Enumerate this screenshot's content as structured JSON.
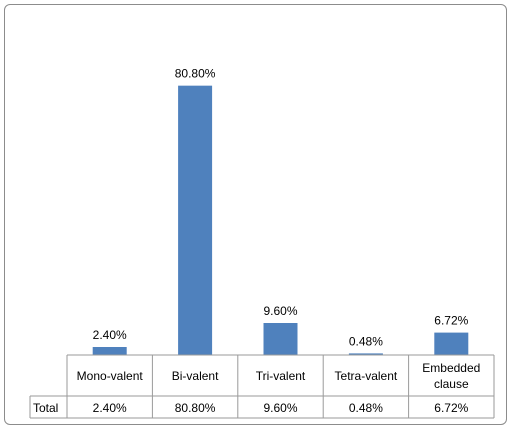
{
  "chart_data": {
    "type": "bar",
    "title": "",
    "xlabel": "",
    "ylabel": "",
    "categories": [
      "Mono-valent",
      "Bi-valent",
      "Tri-valent",
      "Tetra-valent",
      "Embedded clause"
    ],
    "series": [
      {
        "name": "Total",
        "values": [
          2.4,
          80.8,
          9.6,
          0.48,
          6.72
        ]
      }
    ],
    "data_labels": [
      "2.40%",
      "80.80%",
      "9.60%",
      "0.48%",
      "6.72%"
    ],
    "table": {
      "row_header": "Total",
      "cells": [
        "2.40%",
        "80.80%",
        "9.60%",
        "0.48%",
        "6.72%"
      ]
    },
    "ylim": [
      0,
      90
    ],
    "grid": false,
    "legend": "none",
    "bar_color": "#4f81bd",
    "border_color": "#8c8c8c",
    "table_line_color": "#9a9a9a"
  }
}
